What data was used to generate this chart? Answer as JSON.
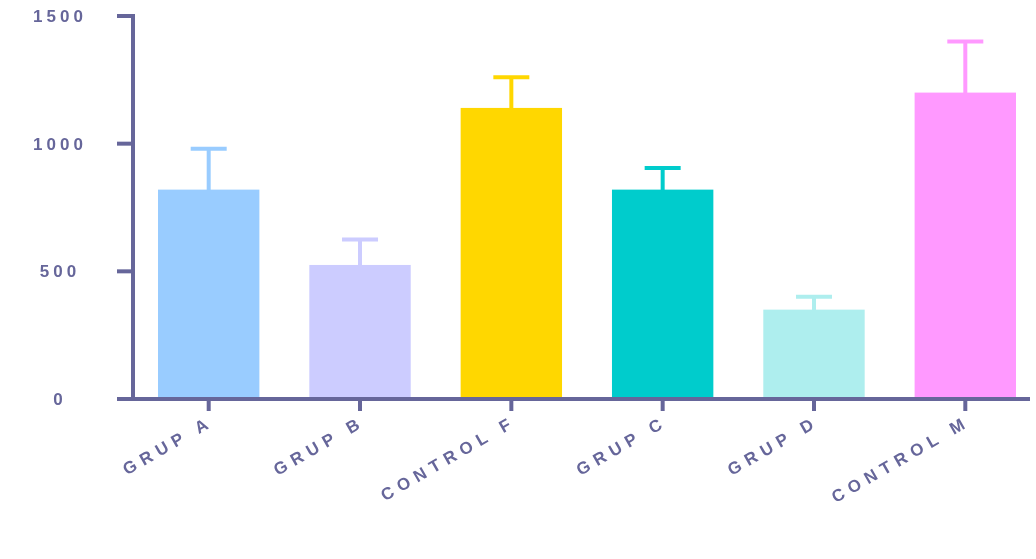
{
  "chart_data": {
    "type": "bar",
    "categories": [
      "GRUP A",
      "GRUP B",
      "CONTROL F",
      "GRUP C",
      "GRUP D",
      "CONTROL M"
    ],
    "values": [
      820,
      525,
      1140,
      820,
      350,
      1200
    ],
    "errors": [
      160,
      100,
      120,
      85,
      50,
      200
    ],
    "colors": [
      "#99ccff",
      "#ccccff",
      "#ffd700",
      "#00cccc",
      "#aeeeee",
      "#ff99ff"
    ],
    "ylim": [
      0,
      1500
    ],
    "yticks": [
      0,
      500,
      1000,
      1500
    ]
  }
}
